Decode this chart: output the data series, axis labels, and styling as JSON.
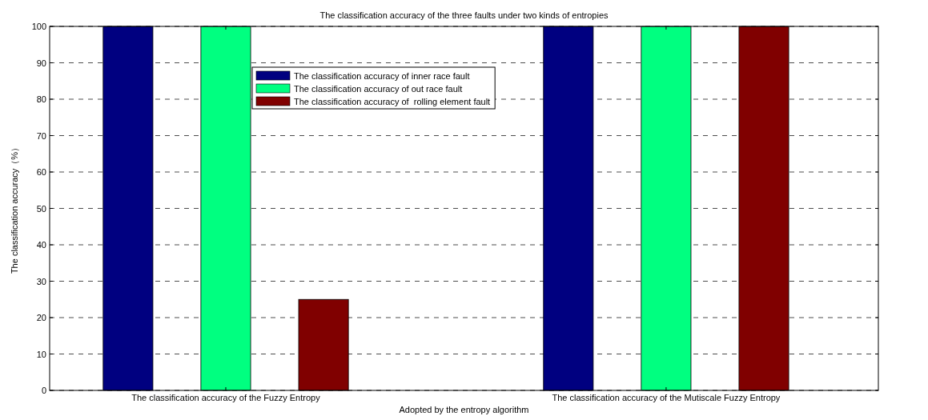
{
  "chart_data": {
    "type": "bar",
    "title": "The classification accuracy of the three faults under two kinds of entropies",
    "xlabel": "Adopted by the entropy algorithm",
    "ylabel": "The classification accuracy（%）",
    "categories": [
      "The classification accuracy of the Fuzzy Entropy",
      "The classification accuracy of the Mutiscale Fuzzy Entropy"
    ],
    "series": [
      {
        "name": "The classification accuracy of inner race fault",
        "color": "#000080",
        "values": [
          100,
          100
        ]
      },
      {
        "name": "The classification accuracy of out race fault",
        "color": "#00ff80",
        "values": [
          100,
          100
        ]
      },
      {
        "name": "The classification accuracy of  rolling element fault",
        "color": "#800000",
        "values": [
          25,
          100
        ]
      }
    ],
    "ylim": [
      0,
      100
    ],
    "yticks": [
      0,
      10,
      20,
      30,
      40,
      50,
      60,
      70,
      80,
      90,
      100
    ],
    "grid": "y",
    "legend": "top"
  }
}
